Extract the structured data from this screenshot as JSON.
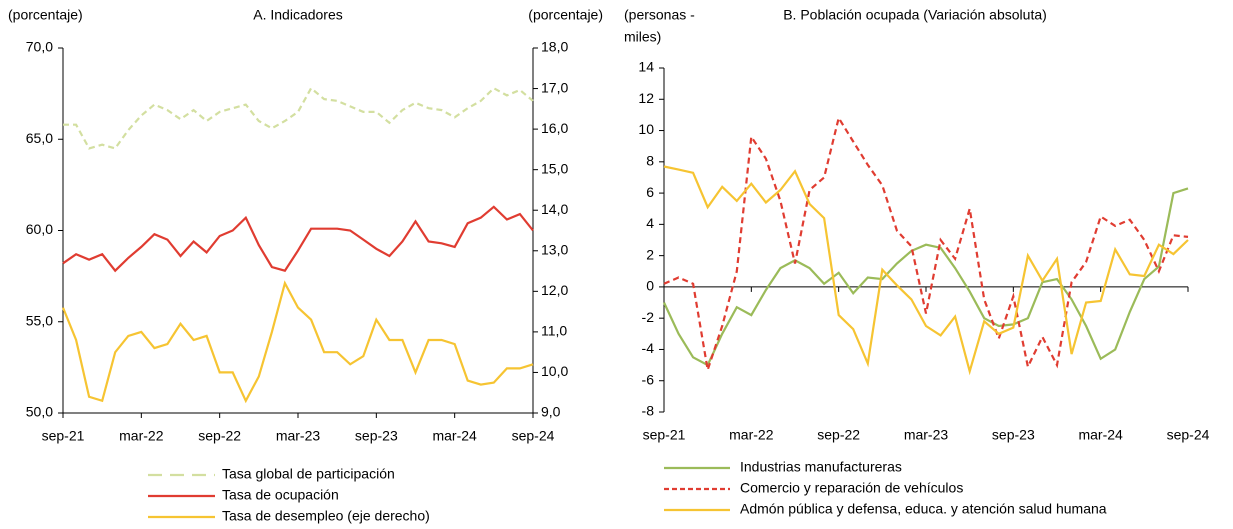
{
  "chart_data": [
    {
      "type": "line",
      "title": "A. Indicadores",
      "y_label": [
        "(porcentaje)"
      ],
      "y2_label": "(porcentaje)",
      "categories": [
        "sep-21",
        null,
        null,
        null,
        null,
        null,
        "mar-22",
        null,
        null,
        null,
        null,
        null,
        "sep-22",
        null,
        null,
        null,
        null,
        null,
        "mar-23",
        null,
        null,
        null,
        null,
        null,
        "sep-23",
        null,
        null,
        null,
        null,
        null,
        "mar-24",
        null,
        null,
        null,
        null,
        null,
        "sep-24"
      ],
      "ylim": [
        50,
        70
      ],
      "yticks": [
        {
          "value": 50,
          "label": "50,0"
        },
        {
          "value": 55,
          "label": "55,0"
        },
        {
          "value": 60,
          "label": "60,0"
        },
        {
          "value": 65,
          "label": "65,0"
        },
        {
          "value": 70,
          "label": "70,0"
        }
      ],
      "y2lim": [
        9,
        18
      ],
      "y2ticks": [
        {
          "value": 9,
          "label": "9,0"
        },
        {
          "value": 10,
          "label": "10,0"
        },
        {
          "value": 11,
          "label": "11,0"
        },
        {
          "value": 12,
          "label": "12,0"
        },
        {
          "value": 13,
          "label": "13,0"
        },
        {
          "value": 14,
          "label": "14,0"
        },
        {
          "value": 15,
          "label": "15,0"
        },
        {
          "value": 16,
          "label": "16,0"
        },
        {
          "value": 17,
          "label": "17,0"
        },
        {
          "value": 18,
          "label": "18,0"
        }
      ],
      "series": [
        {
          "name": "Tasa global de participación",
          "color": "#d3dfa0",
          "style": "dashed",
          "values": [
            65.8,
            65.8,
            64.5,
            64.7,
            64.5,
            65.5,
            66.3,
            66.9,
            66.6,
            66.1,
            66.6,
            66.0,
            66.5,
            66.7,
            66.9,
            66.0,
            65.6,
            66.0,
            66.5,
            67.8,
            67.2,
            67.1,
            66.8,
            66.5,
            66.5,
            65.9,
            66.6,
            67.0,
            66.7,
            66.6,
            66.2,
            66.7,
            67.1,
            67.8,
            67.4,
            67.7,
            67.1
          ]
        },
        {
          "name": "Tasa de ocupación",
          "color": "#e03c31",
          "style": "solid",
          "values": [
            58.2,
            58.7,
            58.4,
            58.7,
            57.8,
            58.5,
            59.1,
            59.8,
            59.5,
            58.6,
            59.4,
            58.8,
            59.7,
            60.0,
            60.7,
            59.2,
            58.0,
            57.8,
            58.9,
            60.1,
            60.1,
            60.1,
            60.0,
            59.5,
            59.0,
            58.6,
            59.4,
            60.5,
            59.4,
            59.3,
            59.1,
            60.4,
            60.7,
            61.3,
            60.6,
            60.9,
            60.0
          ]
        },
        {
          "name": "Tasa de desempleo (eje derecho)",
          "color": "#f6c432",
          "style": "solid",
          "axis": "y2",
          "values": [
            11.6,
            10.8,
            9.4,
            9.3,
            10.5,
            10.9,
            11.0,
            10.6,
            10.7,
            11.2,
            10.8,
            10.9,
            10.0,
            10.0,
            9.3,
            9.9,
            11.0,
            12.2,
            11.6,
            11.3,
            10.5,
            10.5,
            10.2,
            10.4,
            11.3,
            10.8,
            10.8,
            10.0,
            10.8,
            10.8,
            10.7,
            9.8,
            9.7,
            9.75,
            10.1,
            10.1,
            10.2
          ]
        }
      ]
    },
    {
      "type": "line",
      "title": "B. Población ocupada (Variación absoluta)",
      "y_label": [
        "(personas -",
        "miles)"
      ],
      "categories": [
        "sep-21",
        null,
        null,
        null,
        null,
        null,
        "mar-22",
        null,
        null,
        null,
        null,
        null,
        "sep-22",
        null,
        null,
        null,
        null,
        null,
        "mar-23",
        null,
        null,
        null,
        null,
        null,
        "sep-23",
        null,
        null,
        null,
        null,
        null,
        "mar-24",
        null,
        null,
        null,
        null,
        null,
        "sep-24"
      ],
      "ylim": [
        -8,
        14
      ],
      "yticks": [
        -8,
        -6,
        -4,
        -2,
        0,
        2,
        4,
        6,
        8,
        10,
        12,
        14
      ],
      "series": [
        {
          "name": "Industrias manufactureras",
          "color": "#9bbb59",
          "style": "solid",
          "values": [
            -1.0,
            -3.0,
            -4.5,
            -5.0,
            -3.0,
            -1.3,
            -1.8,
            -0.2,
            1.2,
            1.7,
            1.2,
            0.2,
            0.9,
            -0.4,
            0.6,
            0.5,
            1.5,
            2.3,
            2.7,
            2.5,
            1.2,
            -0.3,
            -2.0,
            -2.5,
            -2.4,
            -2.0,
            0.3,
            0.5,
            -0.8,
            -2.5,
            -4.6,
            -4.0,
            -1.6,
            0.5,
            1.3,
            6.0,
            6.3
          ]
        },
        {
          "name": "Comercio y reparación de vehículos",
          "color": "#e03c31",
          "style": "dashed",
          "values": [
            0.2,
            0.6,
            0.2,
            -5.3,
            -2.5,
            1.0,
            9.6,
            8.2,
            5.5,
            1.5,
            6.2,
            7.0,
            10.8,
            9.3,
            7.8,
            6.5,
            3.6,
            2.6,
            -1.7,
            3.0,
            1.8,
            5.0,
            -0.8,
            -3.3,
            -0.6,
            -5.1,
            -3.2,
            -5.0,
            0.3,
            1.6,
            4.5,
            3.9,
            4.3,
            3.0,
            1.0,
            3.3,
            3.2
          ]
        },
        {
          "name": "Admón pública y defensa, educa. y atención salud humana",
          "color": "#f6c432",
          "style": "solid",
          "values": [
            7.7,
            7.5,
            7.3,
            5.1,
            6.4,
            5.5,
            6.6,
            5.4,
            6.2,
            7.4,
            5.3,
            4.4,
            -1.8,
            -2.7,
            -4.9,
            1.1,
            0.1,
            -0.8,
            -2.5,
            -3.1,
            -1.9,
            -5.4,
            -2.2,
            -3.0,
            -2.6,
            2.0,
            0.4,
            1.8,
            -4.3,
            -1.0,
            -0.9,
            2.4,
            0.8,
            0.7,
            2.7,
            2.1,
            3.0
          ]
        }
      ]
    }
  ]
}
